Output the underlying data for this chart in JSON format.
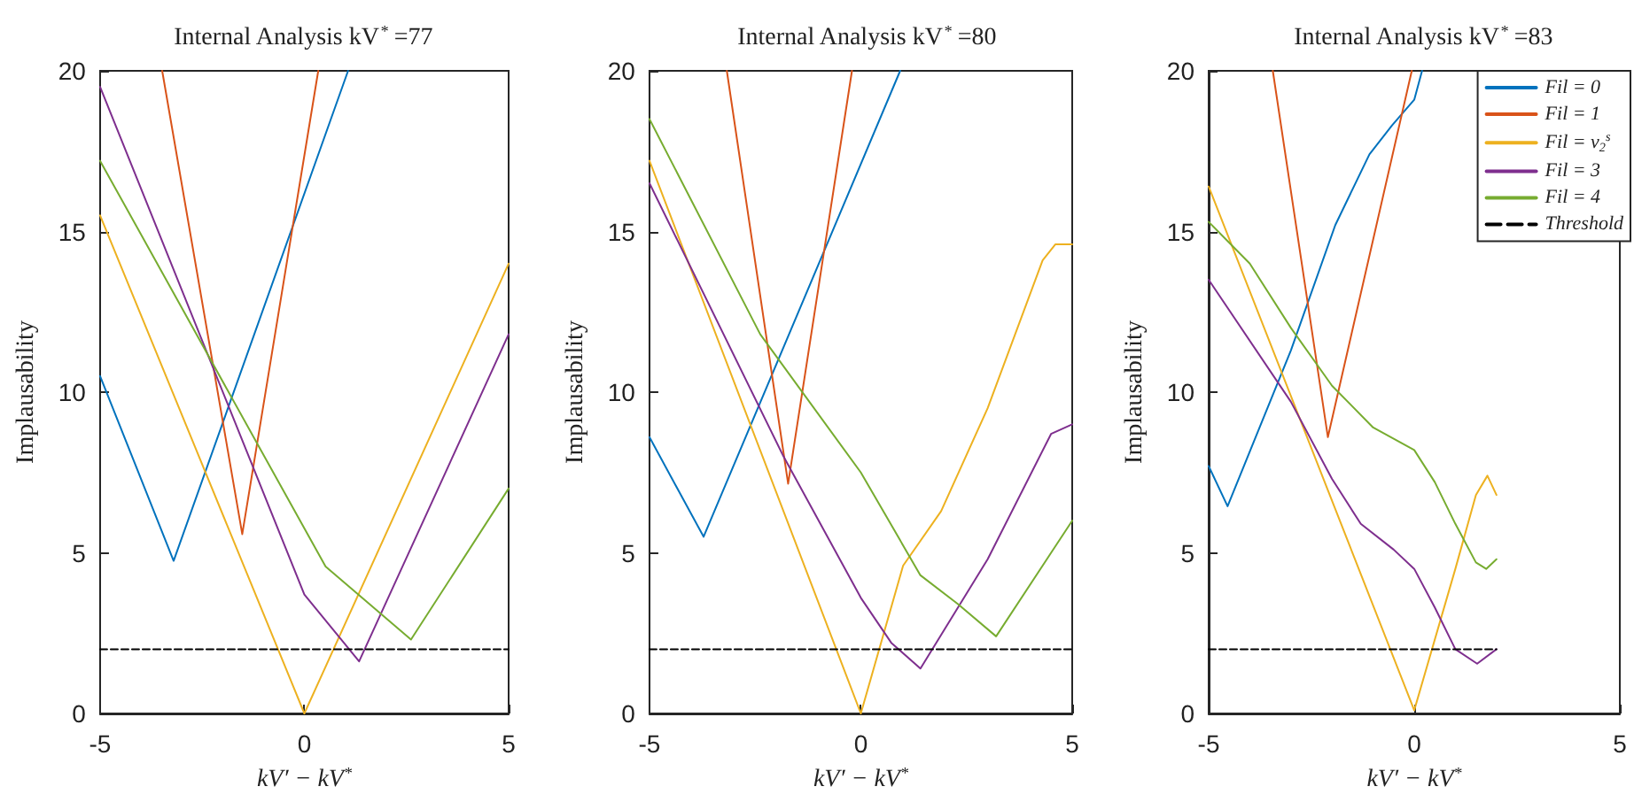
{
  "chart_data": [
    {
      "type": "line",
      "title": "Internal Analysis kV$^{*}$ =77",
      "xlabel": "kV′ − kV$^{*}$",
      "ylabel": "Implausability",
      "xlim": [
        -5,
        5
      ],
      "xticks": [
        -5,
        0,
        5
      ],
      "ylim": [
        0,
        20
      ],
      "yticks": [
        0,
        5,
        10,
        15,
        20
      ],
      "grid": false,
      "legend": false,
      "marker": "none",
      "line_style": "solid",
      "series": [
        {
          "color": "#0072bd",
          "x": [
            -5,
            -3.2,
            1.07
          ],
          "values": [
            10.5,
            4.75,
            20
          ]
        },
        {
          "color": "#d95319",
          "x": [
            -3.48,
            -1.52,
            0.34
          ],
          "values": [
            20,
            5.58,
            20
          ]
        },
        {
          "color": "#edb120",
          "x": [
            -5,
            0,
            5
          ],
          "values": [
            15.5,
            0,
            14
          ]
        },
        {
          "color": "#7e2f8e",
          "x": [
            -5,
            0,
            1.34,
            5
          ],
          "values": [
            19.5,
            3.7,
            1.62,
            11.8
          ]
        },
        {
          "color": "#77ac30",
          "x": [
            -5,
            0.52,
            2.61,
            5
          ],
          "values": [
            17.2,
            4.57,
            2.3,
            7
          ]
        },
        {
          "color": "#000000",
          "line_style": "dashed",
          "x": [
            -5,
            5
          ],
          "values": [
            2,
            2
          ]
        }
      ]
    },
    {
      "type": "line",
      "title": "Internal Analysis kV$^{*}$ =80",
      "xlabel": "kV′ − kV$^{*}$",
      "ylabel": "Implausability",
      "xlim": [
        -5,
        5
      ],
      "xticks": [
        -5,
        0,
        5
      ],
      "ylim": [
        0,
        20
      ],
      "yticks": [
        0,
        5,
        10,
        15,
        20
      ],
      "grid": false,
      "legend": false,
      "marker": "none",
      "line_style": "solid",
      "series": [
        {
          "color": "#0072bd",
          "x": [
            -5,
            -3.72,
            0.93
          ],
          "values": [
            8.6,
            5.5,
            20
          ]
        },
        {
          "color": "#d95319",
          "x": [
            -3.17,
            -1.72,
            -0.21
          ],
          "values": [
            20,
            7.15,
            20
          ]
        },
        {
          "color": "#edb120",
          "x": [
            -5,
            0,
            1,
            1.9,
            3,
            4.3,
            4.6,
            5
          ],
          "values": [
            17.2,
            0,
            4.6,
            6.3,
            9.5,
            14.1,
            14.6,
            14.6
          ]
        },
        {
          "color": "#7e2f8e",
          "x": [
            -5,
            -1.83,
            0,
            0.72,
            1.41,
            3,
            4.5,
            5
          ],
          "values": [
            16.5,
            8,
            3.6,
            2.2,
            1.4,
            4.8,
            8.7,
            9
          ]
        },
        {
          "color": "#77ac30",
          "x": [
            -5,
            -2.38,
            0,
            1.41,
            2.3,
            3.2,
            4.5,
            5
          ],
          "values": [
            18.5,
            11.8,
            7.5,
            4.3,
            3.4,
            2.4,
            5,
            6
          ]
        },
        {
          "color": "#000000",
          "line_style": "dashed",
          "x": [
            -5,
            5
          ],
          "values": [
            2,
            2
          ]
        }
      ]
    },
    {
      "type": "line",
      "title": "Internal Analysis kV$^{*}$ =83",
      "xlabel": "kV′ − kV$^{*}$",
      "ylabel": "Implausability",
      "xlim": [
        -5,
        5
      ],
      "xticks": [
        -5,
        0,
        5
      ],
      "ylim": [
        0,
        20
      ],
      "yticks": [
        0,
        5,
        10,
        15,
        20
      ],
      "grid": false,
      "legend": "top right",
      "marker": "none",
      "line_style": "solid",
      "series": [
        {
          "name": "Fil = 0",
          "color": "#0072bd",
          "x": [
            -5,
            -4.54,
            -3,
            -1.92,
            -1.09,
            -0.54,
            0,
            0.19
          ],
          "values": [
            7.7,
            6.45,
            11.3,
            15.2,
            17.4,
            18.3,
            19.1,
            20
          ]
        },
        {
          "name": "Fil = 1",
          "color": "#d95319",
          "x": [
            -3.44,
            -2.1,
            -0.06
          ],
          "values": [
            20,
            8.6,
            20
          ]
        },
        {
          "name": "Fil = v$_{2}$$^{s}$",
          "color": "#edb120",
          "x": [
            -5,
            0,
            1,
            1.5,
            1.78,
            2
          ],
          "values": [
            16.4,
            0.1,
            4.5,
            6.8,
            7.4,
            6.8
          ]
        },
        {
          "name": "Fil = 3",
          "color": "#7e2f8e",
          "x": [
            -5,
            -3,
            -2,
            -1.3,
            -0.5,
            0,
            0.5,
            1,
            1.53,
            2
          ],
          "values": [
            13.5,
            9.7,
            7.3,
            5.9,
            5.1,
            4.5,
            3.3,
            2,
            1.55,
            2
          ]
        },
        {
          "name": "Fil = 4",
          "color": "#77ac30",
          "x": [
            -5,
            -4,
            -3,
            -2,
            -1,
            0,
            0.5,
            1,
            1.5,
            1.75,
            2
          ],
          "values": [
            15.3,
            14,
            12,
            10.2,
            8.9,
            8.2,
            7.2,
            5.9,
            4.7,
            4.5,
            4.8
          ]
        },
        {
          "name": "Threshold",
          "color": "#000000",
          "line_style": "dashed",
          "x": [
            -5,
            2
          ],
          "values": [
            2,
            2
          ]
        }
      ]
    }
  ]
}
